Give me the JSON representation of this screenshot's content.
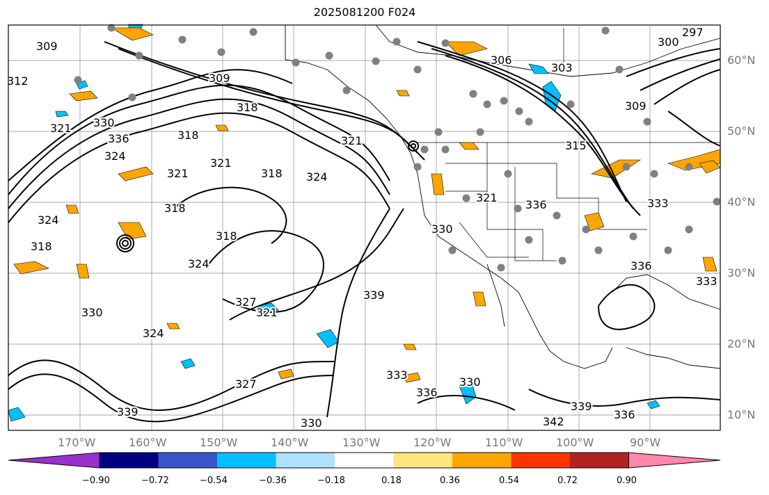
{
  "title": "2025081200 F024",
  "lon_labels": [
    "170°W",
    "160°W",
    "150°W",
    "140°W",
    "130°W",
    "120°W",
    "110°W",
    "100°W",
    "90°W"
  ],
  "lat_labels": [
    "60°N",
    "50°N",
    "40°N",
    "30°N",
    "20°N",
    "10°N"
  ],
  "contour_labels": [
    "309",
    "312",
    "321",
    "330",
    "336",
    "324",
    "318",
    "321",
    "309",
    "318",
    "321",
    "321",
    "318",
    "324",
    "318",
    "318",
    "324",
    "327",
    "321",
    "330",
    "324",
    "306",
    "303",
    "300",
    "297",
    "309",
    "315",
    "321",
    "336",
    "333",
    "336",
    "330",
    "339",
    "333",
    "330",
    "342",
    "339",
    "336",
    "333",
    "327",
    "339",
    "336",
    "330",
    "324",
    "318"
  ],
  "colorbar": {
    "ticks": [
      "−0.90",
      "−0.72",
      "−0.54",
      "−0.36",
      "−0.18",
      "0.18",
      "0.36",
      "0.54",
      "0.72",
      "0.90"
    ],
    "colors": {
      "under": "#9932cc",
      "bins": [
        "#000080",
        "#3a56c8",
        "#00bfff",
        "#b0e0ff",
        "#ffffff",
        "#ffe680",
        "#ffa500",
        "#ff3300",
        "#b22222"
      ],
      "over": "#ff88aa"
    }
  },
  "colors": {
    "contour": "#000000",
    "negative_fill": "#00bfff",
    "positive_fill": "#ffa500",
    "station": "#808080",
    "grid": "#888888"
  }
}
